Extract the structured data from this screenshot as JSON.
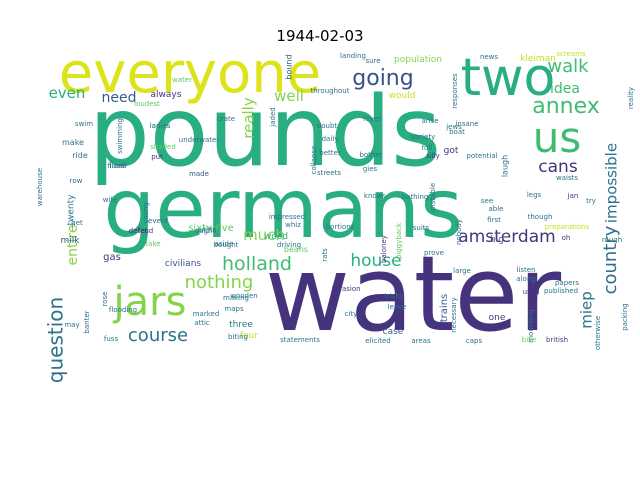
{
  "title": "1944-02-03",
  "colors": {
    "dark_purple": "#46337e",
    "indigo": "#3b518b",
    "slate": "#365c8d",
    "teal": "#2c728e",
    "sea": "#21908d",
    "green": "#28ae80",
    "jade": "#3fbc73",
    "lime": "#5ec962",
    "leaf": "#84d44b",
    "yellow": "#c8e020",
    "gold": "#dde318"
  },
  "words": [
    {
      "text": "pounds",
      "color": "green"
    },
    {
      "text": "germans",
      "color": "green"
    },
    {
      "text": "water",
      "color": "dark_purple"
    },
    {
      "text": "everyone",
      "color": "gold"
    },
    {
      "text": "two",
      "color": "green"
    },
    {
      "text": "us",
      "color": "jade"
    },
    {
      "text": "jars",
      "color": "leaf"
    },
    {
      "text": "going",
      "color": "indigo"
    },
    {
      "text": "annex",
      "color": "jade"
    },
    {
      "text": "walk",
      "color": "jade"
    },
    {
      "text": "idea",
      "color": "jade"
    },
    {
      "text": "holland",
      "color": "jade"
    },
    {
      "text": "question",
      "color": "teal"
    },
    {
      "text": "house",
      "color": "green"
    },
    {
      "text": "amsterdam",
      "color": "dark_purple"
    },
    {
      "text": "country",
      "color": "teal"
    },
    {
      "text": "course",
      "color": "teal"
    },
    {
      "text": "nothing",
      "color": "leaf"
    },
    {
      "text": "cans",
      "color": "dark_purple"
    },
    {
      "text": "impossible",
      "color": "teal"
    },
    {
      "text": "miep",
      "color": "teal"
    },
    {
      "text": "much",
      "color": "leaf"
    },
    {
      "text": "really",
      "color": "leaf"
    },
    {
      "text": "well",
      "color": "leaf"
    },
    {
      "text": "need",
      "color": "slate"
    },
    {
      "text": "even",
      "color": "green"
    },
    {
      "text": "entire",
      "color": "leaf"
    },
    {
      "text": "sixty-five",
      "color": "lime"
    },
    {
      "text": "civilians",
      "color": "indigo"
    },
    {
      "text": "gas",
      "color": "dark_purple"
    },
    {
      "text": "milk",
      "color": "slate"
    },
    {
      "text": "twenty",
      "color": "teal"
    },
    {
      "text": "always",
      "color": "dark_purple"
    },
    {
      "text": "would",
      "color": "yellow"
    },
    {
      "text": "kleiman",
      "color": "yellow"
    },
    {
      "text": "population",
      "color": "leaf"
    },
    {
      "text": "bound",
      "color": "slate"
    },
    {
      "text": "three",
      "color": "teal"
    },
    {
      "text": "four",
      "color": "yellow"
    },
    {
      "text": "trains",
      "color": "slate"
    },
    {
      "text": "case",
      "color": "slate"
    },
    {
      "text": "one",
      "color": "dark_purple"
    },
    {
      "text": "big",
      "color": "slate"
    },
    {
      "text": "wood",
      "color": "green"
    },
    {
      "text": "beans",
      "color": "lime"
    },
    {
      "text": "got",
      "color": "dark_purple"
    },
    {
      "text": "make",
      "color": "teal"
    },
    {
      "text": "ride",
      "color": "teal"
    },
    {
      "text": "flood",
      "color": "teal"
    },
    {
      "text": "ladies",
      "color": "lime"
    },
    {
      "text": "put",
      "color": "dark_purple"
    },
    {
      "text": "made",
      "color": "slate"
    },
    {
      "text": "insane",
      "color": "teal"
    },
    {
      "text": "laugh",
      "color": "teal"
    },
    {
      "text": "potential",
      "color": "teal"
    },
    {
      "text": "silly",
      "color": "dark_purple"
    },
    {
      "text": "full",
      "color": "teal"
    },
    {
      "text": "bathing",
      "color": "teal"
    },
    {
      "text": "suits",
      "color": "teal"
    },
    {
      "text": "baloney",
      "color": "dark_purple"
    },
    {
      "text": "piggyback",
      "color": "lime"
    },
    {
      "text": "invasion",
      "color": "dark_purple"
    },
    {
      "text": "tricky",
      "color": "teal"
    },
    {
      "text": "leave",
      "color": "teal"
    },
    {
      "text": "city",
      "color": "teal"
    },
    {
      "text": "areas",
      "color": "teal"
    },
    {
      "text": "statements",
      "color": "teal"
    },
    {
      "text": "elicited",
      "color": "teal"
    },
    {
      "text": "caps",
      "color": "teal"
    },
    {
      "text": "maps",
      "color": "teal"
    },
    {
      "text": "making",
      "color": "teal"
    },
    {
      "text": "attic",
      "color": "teal"
    },
    {
      "text": "marked",
      "color": "teal"
    },
    {
      "text": "fuss",
      "color": "teal"
    },
    {
      "text": "biting",
      "color": "teal"
    },
    {
      "text": "stilts",
      "color": "teal"
    },
    {
      "text": "driving",
      "color": "teal"
    },
    {
      "text": "impressed",
      "color": "teal"
    },
    {
      "text": "whiz",
      "color": "teal"
    },
    {
      "text": "rats",
      "color": "teal"
    },
    {
      "text": "portions",
      "color": "teal"
    },
    {
      "text": "british",
      "color": "dark_purple"
    },
    {
      "text": "published",
      "color": "teal"
    },
    {
      "text": "papers",
      "color": "teal"
    },
    {
      "text": "otherwise",
      "color": "teal"
    },
    {
      "text": "mounting",
      "color": "teal"
    },
    {
      "text": "first",
      "color": "teal"
    },
    {
      "text": "along",
      "color": "teal"
    },
    {
      "text": "listen",
      "color": "teal"
    },
    {
      "text": "used",
      "color": "dark_purple"
    },
    {
      "text": "though",
      "color": "teal"
    },
    {
      "text": "able",
      "color": "teal"
    },
    {
      "text": "see",
      "color": "teal"
    },
    {
      "text": "jan",
      "color": "dark_purple"
    },
    {
      "text": "try",
      "color": "teal"
    },
    {
      "text": "oh",
      "color": "dark_purple"
    },
    {
      "text": "legs",
      "color": "teal"
    },
    {
      "text": "waists",
      "color": "teal"
    },
    {
      "text": "rough",
      "color": "teal"
    },
    {
      "text": "crate",
      "color": "teal"
    },
    {
      "text": "event",
      "color": "teal"
    },
    {
      "text": "let",
      "color": "dark_purple"
    },
    {
      "text": "defend",
      "color": "dark_purple"
    },
    {
      "text": "young",
      "color": "teal"
    },
    {
      "text": "wife",
      "color": "teal"
    },
    {
      "text": "flooding",
      "color": "teal"
    },
    {
      "text": "rose",
      "color": "teal"
    },
    {
      "text": "may",
      "color": "teal"
    },
    {
      "text": "banter",
      "color": "teal"
    },
    {
      "text": "aside",
      "color": "teal"
    },
    {
      "text": "bought",
      "color": "teal"
    },
    {
      "text": "sure",
      "color": "teal"
    },
    {
      "text": "landing",
      "color": "teal"
    },
    {
      "text": "news",
      "color": "teal"
    },
    {
      "text": "throughout",
      "color": "teal"
    },
    {
      "text": "loudest",
      "color": "lime"
    },
    {
      "text": "water",
      "color": "lime"
    },
    {
      "text": "underwater",
      "color": "teal"
    },
    {
      "text": "doubt",
      "color": "teal"
    },
    {
      "text": "better",
      "color": "teal"
    },
    {
      "text": "streets",
      "color": "teal"
    },
    {
      "text": "daily",
      "color": "teal"
    },
    {
      "text": "collapse",
      "color": "teal"
    },
    {
      "text": "gies",
      "color": "teal"
    },
    {
      "text": "bother",
      "color": "teal"
    },
    {
      "text": "arise",
      "color": "teal"
    },
    {
      "text": "jews",
      "color": "teal"
    },
    {
      "text": "boat",
      "color": "teal"
    },
    {
      "text": "variety",
      "color": "teal"
    },
    {
      "text": "fever",
      "color": "teal"
    },
    {
      "text": "swimming",
      "color": "teal"
    },
    {
      "text": "shaded",
      "color": "lime"
    },
    {
      "text": "swim",
      "color": "teal"
    },
    {
      "text": "row",
      "color": "teal"
    },
    {
      "text": "get",
      "color": "teal"
    },
    {
      "text": "take",
      "color": "lime"
    },
    {
      "text": "ought",
      "color": "teal"
    },
    {
      "text": "prove",
      "color": "teal"
    },
    {
      "text": "large",
      "color": "teal"
    },
    {
      "text": "nobody",
      "color": "teal"
    },
    {
      "text": "necessary",
      "color": "teal"
    },
    {
      "text": "unstable",
      "color": "teal"
    },
    {
      "text": "knows",
      "color": "teal"
    },
    {
      "text": "preparations",
      "color": "yellow"
    },
    {
      "text": "reality",
      "color": "teal"
    },
    {
      "text": "screams",
      "color": "yellow"
    },
    {
      "text": "packing",
      "color": "teal"
    },
    {
      "text": "warehouse",
      "color": "teal"
    },
    {
      "text": "responses",
      "color": "teal"
    },
    {
      "text": "bike",
      "color": "lime"
    },
    {
      "text": "jaded",
      "color": "teal"
    },
    {
      "text": "wooden",
      "color": "teal"
    },
    {
      "text": "ladies",
      "color": "teal"
    },
    {
      "text": "flood",
      "color": "teal"
    }
  ]
}
